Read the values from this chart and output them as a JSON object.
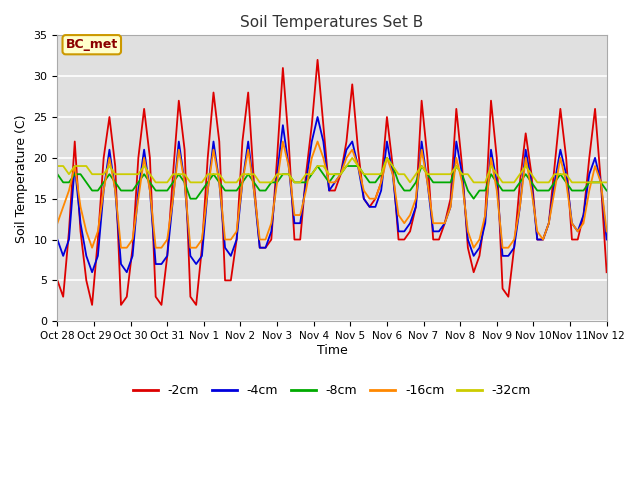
{
  "title": "Soil Temperatures Set B",
  "xlabel": "Time",
  "ylabel": "Soil Temperature (C)",
  "ylim": [
    0,
    35
  ],
  "annotation": "BC_met",
  "background_color": "#ffffff",
  "plot_bg_color": "#e0e0e0",
  "grid_color": "#ffffff",
  "series_colors": {
    "-2cm": "#dd0000",
    "-4cm": "#0000dd",
    "-8cm": "#00aa00",
    "-16cm": "#ff8800",
    "-32cm": "#cccc00"
  },
  "x_tick_labels": [
    "Oct 28",
    "Oct 29",
    "Oct 30",
    "Oct 31",
    "Nov 1",
    "Nov 2",
    "Nov 3",
    "Nov 4",
    "Nov 5",
    "Nov 6",
    "Nov 7",
    "Nov 8",
    "Nov 9",
    "Nov 10",
    "Nov 11",
    "Nov 12"
  ],
  "data_2cm": [
    5,
    3,
    11,
    22,
    11,
    5,
    2,
    10,
    20,
    25,
    19,
    2,
    3,
    9,
    20,
    26,
    20,
    3,
    2,
    8,
    18,
    27,
    21,
    3,
    2,
    9,
    20,
    28,
    22,
    5,
    5,
    10,
    22,
    28,
    17,
    9,
    9,
    10,
    20,
    31,
    22,
    10,
    10,
    18,
    24,
    32,
    24,
    16,
    16,
    18,
    22,
    29,
    21,
    15,
    14,
    15,
    17,
    25,
    19,
    10,
    10,
    11,
    14,
    27,
    20,
    10,
    10,
    12,
    15,
    26,
    19,
    9,
    6,
    8,
    13,
    27,
    20,
    4,
    3,
    9,
    17,
    23,
    18,
    10,
    10,
    12,
    19,
    26,
    20,
    10,
    10,
    13,
    20,
    26,
    17,
    6
  ],
  "data_4cm": [
    10,
    8,
    10,
    19,
    12,
    8,
    6,
    8,
    16,
    21,
    16,
    7,
    6,
    8,
    16,
    21,
    16,
    7,
    7,
    8,
    15,
    22,
    17,
    8,
    7,
    8,
    16,
    22,
    17,
    9,
    8,
    10,
    17,
    22,
    16,
    9,
    9,
    11,
    18,
    24,
    19,
    12,
    12,
    17,
    22,
    25,
    22,
    16,
    17,
    18,
    21,
    22,
    19,
    15,
    14,
    14,
    16,
    22,
    18,
    11,
    11,
    12,
    14,
    22,
    17,
    11,
    11,
    12,
    14,
    22,
    18,
    10,
    8,
    9,
    12,
    21,
    17,
    8,
    8,
    9,
    14,
    21,
    17,
    10,
    10,
    12,
    17,
    21,
    18,
    12,
    11,
    13,
    18,
    20,
    17,
    10
  ],
  "data_8cm": [
    18,
    17,
    17,
    18,
    18,
    17,
    16,
    16,
    17,
    18,
    17,
    16,
    16,
    16,
    17,
    18,
    17,
    16,
    16,
    16,
    17,
    18,
    17,
    15,
    15,
    16,
    17,
    18,
    17,
    16,
    16,
    16,
    17,
    18,
    17,
    16,
    16,
    17,
    17,
    18,
    18,
    17,
    17,
    17,
    18,
    19,
    18,
    17,
    18,
    18,
    19,
    19,
    19,
    18,
    17,
    17,
    18,
    20,
    19,
    17,
    16,
    16,
    17,
    19,
    18,
    17,
    17,
    17,
    17,
    19,
    18,
    16,
    15,
    16,
    16,
    18,
    17,
    16,
    16,
    16,
    17,
    18,
    17,
    16,
    16,
    16,
    17,
    18,
    17,
    16,
    16,
    16,
    17,
    17,
    17,
    16
  ],
  "data_16cm": [
    12,
    14,
    16,
    19,
    14,
    11,
    9,
    11,
    16,
    20,
    16,
    9,
    9,
    10,
    15,
    20,
    16,
    9,
    9,
    10,
    15,
    21,
    17,
    9,
    9,
    10,
    16,
    21,
    17,
    10,
    10,
    11,
    17,
    21,
    16,
    10,
    10,
    12,
    17,
    22,
    19,
    13,
    13,
    16,
    20,
    22,
    20,
    17,
    17,
    18,
    20,
    21,
    19,
    16,
    15,
    15,
    17,
    20,
    18,
    13,
    12,
    13,
    15,
    21,
    17,
    12,
    12,
    12,
    14,
    20,
    17,
    11,
    9,
    10,
    13,
    20,
    16,
    9,
    9,
    10,
    14,
    20,
    16,
    11,
    10,
    12,
    16,
    20,
    17,
    12,
    11,
    12,
    16,
    19,
    17,
    11
  ],
  "data_32cm": [
    19,
    19,
    18,
    19,
    19,
    19,
    18,
    18,
    18,
    19,
    18,
    18,
    18,
    18,
    18,
    19,
    18,
    17,
    17,
    17,
    18,
    18,
    18,
    17,
    17,
    17,
    18,
    18,
    18,
    17,
    17,
    17,
    18,
    18,
    18,
    17,
    17,
    17,
    18,
    18,
    18,
    17,
    17,
    18,
    18,
    19,
    19,
    18,
    18,
    18,
    19,
    20,
    19,
    18,
    18,
    18,
    18,
    20,
    19,
    18,
    18,
    17,
    18,
    19,
    18,
    18,
    18,
    18,
    18,
    19,
    18,
    18,
    17,
    17,
    17,
    19,
    18,
    17,
    17,
    17,
    18,
    19,
    18,
    17,
    17,
    17,
    18,
    18,
    18,
    17,
    17,
    17,
    17,
    17,
    17,
    17
  ]
}
